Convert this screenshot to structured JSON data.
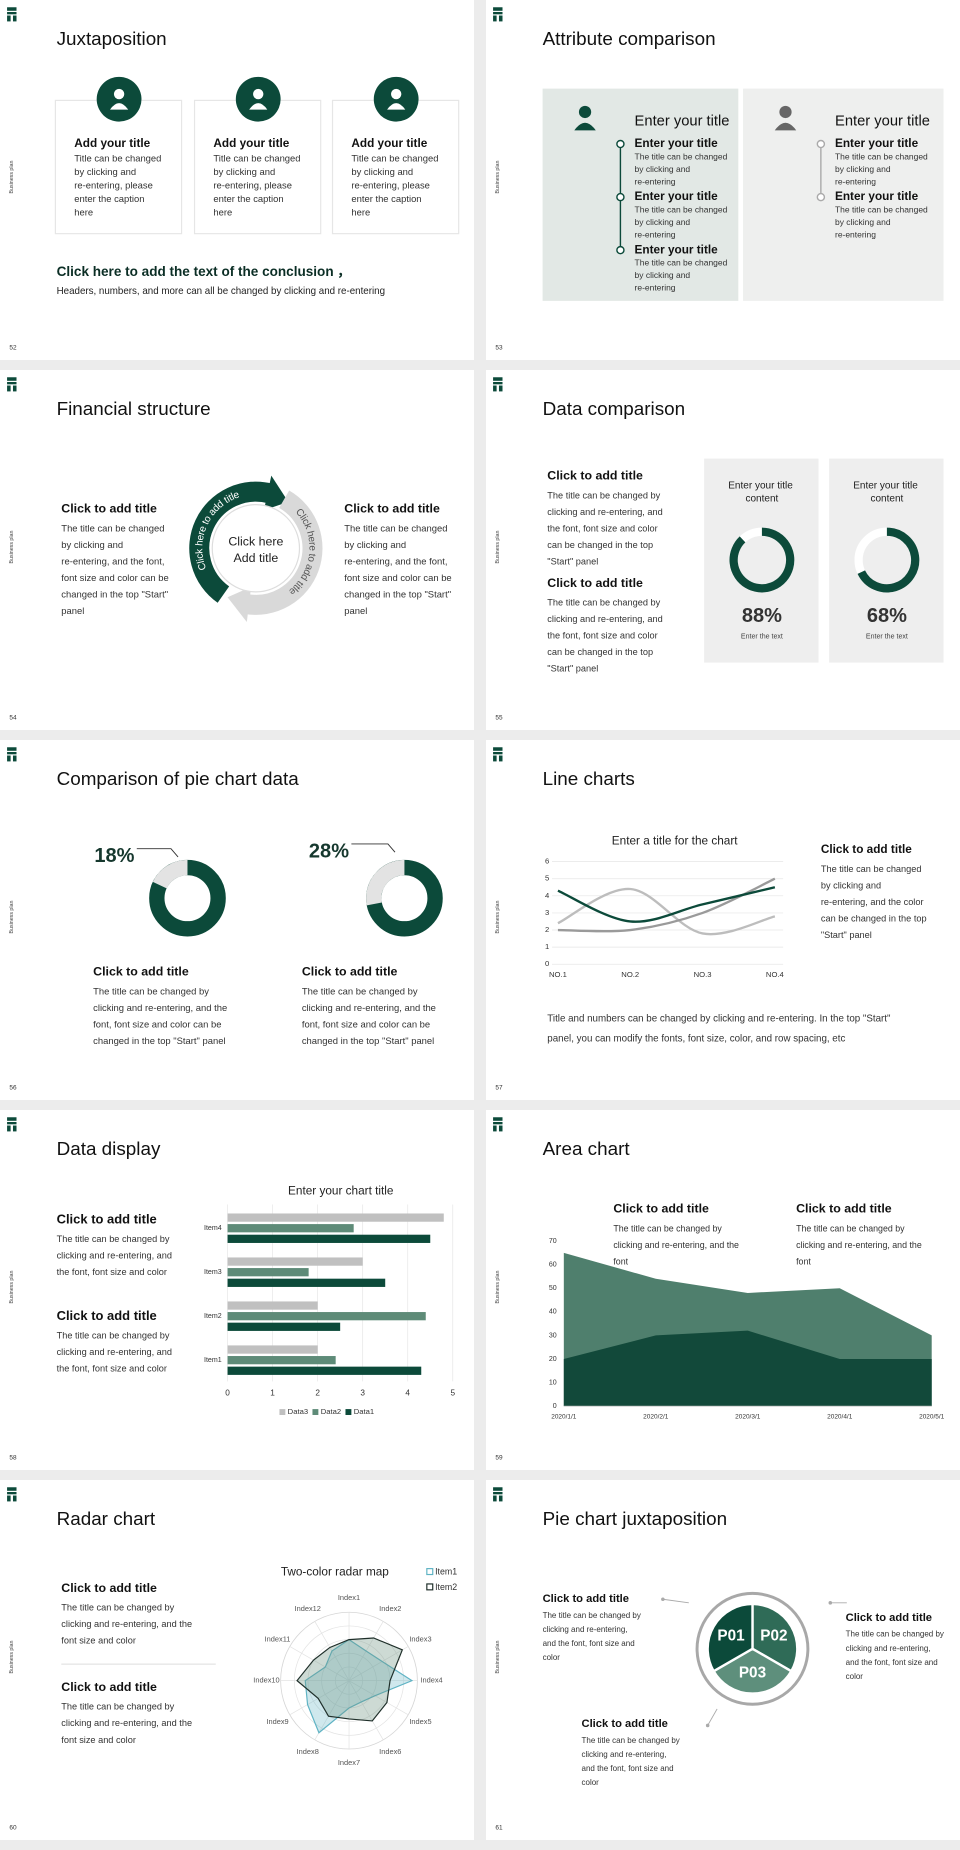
{
  "slides": [
    {
      "number": 52,
      "side_label": "Business plan",
      "title": "Juxtaposition",
      "cards": [
        {
          "title": "Add your title",
          "text": "Title can be changed by clicking and re-entering, please enter the caption here"
        },
        {
          "title": "Add your title",
          "text": "Title can be changed by clicking and re-entering, please enter the caption here"
        },
        {
          "title": "Add your title",
          "text": "Title can be changed by clicking and re-entering, please enter the caption here"
        }
      ],
      "conclusion": {
        "title": "Click here to add the text of the conclusion ，",
        "text": "Headers, numbers, and more can all be changed by clicking and re-entering"
      }
    },
    {
      "number": 53,
      "side_label": "Business plan",
      "title": "Attribute comparison",
      "panels": [
        {
          "title": "Enter your title",
          "items": [
            {
              "title": "Enter your title",
              "text": "The title can be changed by clicking and re-entering"
            },
            {
              "title": "Enter your title",
              "text": "The title can be changed by clicking and re-entering"
            },
            {
              "title": "Enter your title",
              "text": "The title can be changed by clicking and re-entering"
            }
          ]
        },
        {
          "title": "Enter your title",
          "items": [
            {
              "title": "Enter your title",
              "text": "The title can be changed by clicking and re-entering"
            },
            {
              "title": "Enter your title",
              "text": "The title can be changed by clicking and re-entering"
            }
          ]
        }
      ]
    },
    {
      "number": 54,
      "side_label": "Business plan",
      "title": "Financial structure",
      "blocks": [
        {
          "title": "Click to add title",
          "text": "The title can be changed by clicking and re-entering, and the font, font size and color can be changed in the top \"Start\" panel"
        },
        {
          "title": "Click to add title",
          "text": "The title can be changed by clicking and re-entering, and the font, font size and color can be changed in the top \"Start\" panel"
        }
      ],
      "center": [
        "Click here",
        "Add title"
      ],
      "arrows": [
        "Click here to add title",
        "Click here to add title"
      ]
    },
    {
      "number": 55,
      "side_label": "Business plan",
      "title": "Data comparison",
      "blocks": [
        {
          "title": "Click to add title",
          "text": "The title can be changed by clicking and re-entering, and the font, font size and color can be changed in the top \"Start\" panel"
        },
        {
          "title": "Click to add title",
          "text": "The title can be changed by clicking and re-entering, and the font, font size and color can be changed in the top \"Start\" panel"
        }
      ],
      "cards": [
        {
          "title": "Enter your title content",
          "value": 88,
          "value_label": "88%",
          "caption": "Enter the text"
        },
        {
          "title": "Enter your title content",
          "value": 68,
          "value_label": "68%",
          "caption": "Enter the text"
        }
      ]
    },
    {
      "number": 56,
      "side_label": "Business plan",
      "title": "Comparison of pie chart data",
      "items": [
        {
          "value": 18,
          "value_label": "18%",
          "title": "Click to add title",
          "text": "The title can be changed by clicking and re-entering, and the font, font size and color can be changed in the top \"Start\" panel"
        },
        {
          "value": 28,
          "value_label": "28%",
          "title": "Click to add title",
          "text": "The title can be changed by clicking and re-entering, and the font, font size and color can be changed in the top \"Start\" panel"
        }
      ]
    },
    {
      "number": 57,
      "side_label": "Business plan",
      "title": "Line charts",
      "chart": {
        "type": "line",
        "title": "Enter a title for the chart",
        "categories": [
          "NO.1",
          "NO.2",
          "NO.3",
          "NO.4"
        ],
        "series": [
          {
            "color": "#bdbdbd",
            "values": [
              2.4,
              4.4,
              1.8,
              2.8
            ]
          },
          {
            "color": "#9a9a9a",
            "values": [
              2,
              2,
              3,
              5
            ]
          },
          {
            "color": "#0c4a3a",
            "values": [
              4.3,
              2.5,
              3.5,
              4.5
            ]
          }
        ],
        "ylim": [
          0,
          6
        ],
        "yticks": [
          0,
          1,
          2,
          3,
          4,
          5,
          6
        ],
        "grid": true,
        "smooth": true
      },
      "block": {
        "title": "Click to add title",
        "text": "The title can be changed by clicking and re-entering, and the color can be changed in the top \"Start\" panel"
      },
      "note": "Title and numbers can be changed by clicking and re-entering. In the top \"Start\" panel, you can modify the fonts, font size, color, and row spacing, etc"
    },
    {
      "number": 58,
      "side_label": "Business plan",
      "title": "Data display",
      "chart": {
        "type": "bar",
        "orientation": "horizontal",
        "title": "Enter your chart title",
        "categories": [
          "Item1",
          "Item2",
          "Item3",
          "Item4"
        ],
        "series": [
          {
            "name": "Data1",
            "color": "#0c4a3a",
            "values": [
              4.3,
              2.5,
              3.5,
              4.5
            ]
          },
          {
            "name": "Data2",
            "color": "#5e8b78",
            "values": [
              2.4,
              4.4,
              1.8,
              2.8
            ]
          },
          {
            "name": "Data3",
            "color": "#c0c0c0",
            "values": [
              2,
              2,
              3,
              4.8
            ]
          }
        ],
        "xlim": [
          0,
          5
        ],
        "xticks": [
          0,
          1,
          2,
          3,
          4,
          5
        ],
        "grid": true
      },
      "blocks": [
        {
          "title": "Click to add title",
          "text": "The title can be changed by clicking and re-entering, and the font, font size and color"
        },
        {
          "title": "Click to add title",
          "text": "The title can be changed by clicking and re-entering, and the font, font size and color"
        }
      ]
    },
    {
      "number": 59,
      "side_label": "Business plan",
      "title": "Area chart",
      "chart": {
        "type": "area",
        "x": [
          "2020/1/1",
          "2020/2/1",
          "2020/3/1",
          "2020/4/1",
          "2020/5/1"
        ],
        "series": [
          {
            "color": "#4f7f6d",
            "values": [
              65,
              54,
              48,
              50,
              30
            ]
          },
          {
            "color": "#12493a",
            "values": [
              20,
              30,
              32,
              20,
              20
            ]
          }
        ],
        "ylim": [
          0,
          70
        ],
        "yticks": [
          0,
          10,
          20,
          30,
          40,
          50,
          60,
          70
        ]
      },
      "blocks": [
        {
          "title": "Click to add title",
          "text": "The title can be changed by clicking and re-entering, and the font"
        },
        {
          "title": "Click to add title",
          "text": "The title can be changed by clicking and re-entering, and the font"
        }
      ]
    },
    {
      "number": 60,
      "side_label": "Business plan",
      "title": "Radar chart",
      "chart": {
        "type": "radar",
        "title": "Two-color radar map",
        "categories": [
          "Index1",
          "Index2",
          "Index3",
          "Index4",
          "Index5",
          "Index6",
          "Index7",
          "Index8",
          "Index9",
          "Index10",
          "Index11",
          "Index12"
        ],
        "series": [
          {
            "name": "Item1",
            "color": "#5fb3c4",
            "values": [
              3,
              2.5,
              2.8,
              4.6,
              2.2,
              1.8,
              2,
              4.4,
              3.5,
              3.2,
              2,
              2.5
            ]
          },
          {
            "name": "Item2",
            "color": "#1f2f2a",
            "values": [
              3,
              3.6,
              4.5,
              3,
              3.2,
              3.4,
              2.8,
              3,
              2.6,
              3.8,
              3,
              2.8
            ]
          }
        ],
        "rlim": [
          0,
          5
        ]
      },
      "blocks": [
        {
          "title": "Click to add title",
          "text": "The title can be changed by clicking and re-entering, and the font size and color"
        },
        {
          "title": "Click to add title",
          "text": "The title can be changed by clicking and re-entering, and the font size and color"
        }
      ]
    },
    {
      "number": 61,
      "side_label": "Business plan",
      "title": "Pie chart juxtaposition",
      "segments": [
        "P01",
        "P02",
        "P03"
      ],
      "blocks": [
        {
          "title": "Click to add title",
          "text": "The title can be changed by clicking and re-entering, and the font, font size and color"
        },
        {
          "title": "Click to add title",
          "text": "The title can be changed by clicking and re-entering, and the font, font size and color"
        },
        {
          "title": "Click to add title",
          "text": "The title can be changed by clicking and re-entering, and the font, font size and color"
        }
      ]
    }
  ]
}
